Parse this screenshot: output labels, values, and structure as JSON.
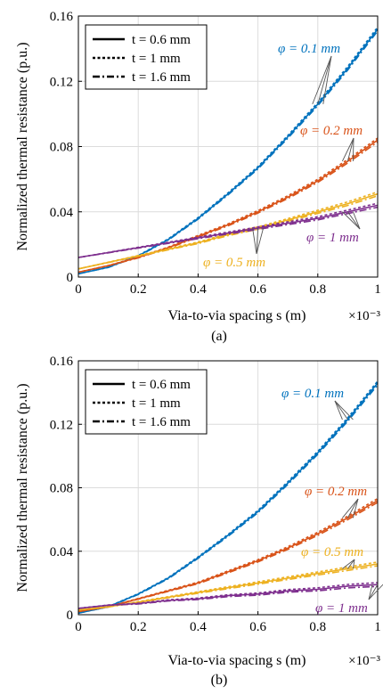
{
  "colors": {
    "phi_0_1": "#0072BD",
    "phi_0_2": "#D95319",
    "phi_0_5": "#EDB120",
    "phi_1": "#7E2F8E"
  },
  "chart_data": [
    {
      "type": "line",
      "caption": "(a)",
      "xlabel": "Via-to-via spacing s (m)",
      "x_multiplier": "×10⁻³",
      "ylabel": "Normalized thermal resistance (p.u.)",
      "xlim": [
        0,
        1
      ],
      "ylim": [
        0,
        0.16
      ],
      "xticks": [
        "0",
        "0.2",
        "0.4",
        "0.6",
        "0.8",
        "1"
      ],
      "yticks": [
        "0",
        "0.04",
        "0.08",
        "0.12",
        "0.16"
      ],
      "grid": true,
      "legend": {
        "placement": "top-left",
        "entries": [
          {
            "label": "t = 0.6 mm",
            "style": "solid"
          },
          {
            "label": "t = 1 mm",
            "style": "dotted"
          },
          {
            "label": "t = 1.6 mm",
            "style": "dashdot"
          }
        ]
      },
      "x": [
        0,
        0.1,
        0.2,
        0.3,
        0.4,
        0.5,
        0.6,
        0.7,
        0.8,
        0.9,
        1.0
      ],
      "series": [
        {
          "name": "φ = 0.1 mm",
          "color": "#0072BD",
          "label_pos": "top-right",
          "values": [
            0.002,
            0.006,
            0.013,
            0.023,
            0.036,
            0.051,
            0.067,
            0.086,
            0.106,
            0.128,
            0.152
          ]
        },
        {
          "name": "φ = 0.2 mm",
          "color": "#D95319",
          "label_pos": "right",
          "values": [
            0.003,
            0.007,
            0.012,
            0.018,
            0.025,
            0.032,
            0.04,
            0.049,
            0.059,
            0.071,
            0.084
          ]
        },
        {
          "name": "φ = 0.5 mm",
          "color": "#EDB120",
          "label_pos": "bottom",
          "values": [
            0.005,
            0.009,
            0.013,
            0.017,
            0.021,
            0.026,
            0.03,
            0.035,
            0.04,
            0.045,
            0.051
          ]
        },
        {
          "name": "φ = 1 mm",
          "color": "#7E2F8E",
          "label_pos": "bottom-right",
          "values": [
            0.012,
            0.015,
            0.018,
            0.021,
            0.024,
            0.027,
            0.03,
            0.033,
            0.036,
            0.04,
            0.044
          ]
        }
      ]
    },
    {
      "type": "line",
      "caption": "(b)",
      "xlabel": "Via-to-via spacing s (m)",
      "x_multiplier": "×10⁻³",
      "ylabel": "Normalized thermal resistance (p.u.)",
      "xlim": [
        0,
        1
      ],
      "ylim": [
        0,
        0.16
      ],
      "xticks": [
        "0",
        "0.2",
        "0.4",
        "0.6",
        "0.8",
        "1"
      ],
      "yticks": [
        "0",
        "0.04",
        "0.08",
        "0.12",
        "0.16"
      ],
      "grid": true,
      "legend": {
        "placement": "top-left",
        "entries": [
          {
            "label": "t = 0.6 mm",
            "style": "solid"
          },
          {
            "label": "t = 1 mm",
            "style": "dotted"
          },
          {
            "label": "t = 1.6 mm",
            "style": "dashdot"
          }
        ]
      },
      "x": [
        0,
        0.1,
        0.2,
        0.3,
        0.4,
        0.5,
        0.6,
        0.7,
        0.8,
        0.9,
        1.0
      ],
      "series": [
        {
          "name": "φ = 0.1 mm",
          "color": "#0072BD",
          "label_pos": "top-right",
          "values": [
            0.001,
            0.005,
            0.013,
            0.023,
            0.036,
            0.05,
            0.065,
            0.083,
            0.102,
            0.123,
            0.146
          ]
        },
        {
          "name": "φ = 0.2 mm",
          "color": "#D95319",
          "label_pos": "right",
          "values": [
            0.002,
            0.005,
            0.01,
            0.015,
            0.02,
            0.027,
            0.034,
            0.042,
            0.051,
            0.061,
            0.072
          ]
        },
        {
          "name": "φ = 0.5 mm",
          "color": "#EDB120",
          "label_pos": "right",
          "values": [
            0.003,
            0.005,
            0.008,
            0.011,
            0.014,
            0.017,
            0.02,
            0.023,
            0.026,
            0.029,
            0.032
          ]
        },
        {
          "name": "φ = 1 mm",
          "color": "#7E2F8E",
          "label_pos": "bottom-right",
          "values": [
            0.004,
            0.006,
            0.007,
            0.009,
            0.01,
            0.012,
            0.013,
            0.015,
            0.016,
            0.018,
            0.019
          ]
        }
      ]
    }
  ]
}
